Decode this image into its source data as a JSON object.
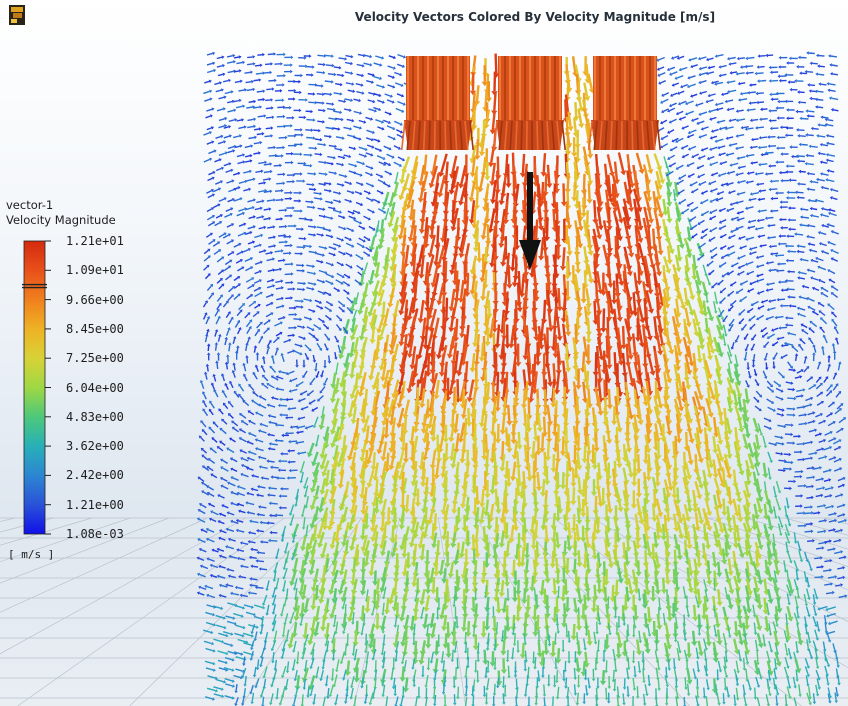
{
  "title": "Velocity Vectors Colored By Velocity Magnitude [m/s]",
  "app_icon": "fluent-logo-icon",
  "legend": {
    "name": "vector-1",
    "variable": "Velocity Magnitude",
    "units": "[ m/s ]",
    "ticks": [
      "1.21e+01",
      "1.09e+01",
      "9.66e+00",
      "8.45e+00",
      "7.25e+00",
      "6.04e+00",
      "4.83e+00",
      "3.62e+00",
      "2.42e+00",
      "1.21e+00",
      "1.08e-03"
    ],
    "colors": [
      "#d42a10",
      "#e8501a",
      "#f0801e",
      "#eeb224",
      "#d8d236",
      "#9ed844",
      "#4ec87a",
      "#28b0b8",
      "#2c86d2",
      "#2a52d8",
      "#1010e8"
    ],
    "marker_value": 10.3
  },
  "velocity_range": {
    "min": 0.00108,
    "max": 12.1
  },
  "scene": {
    "inlets": 3,
    "background_top": "#ffffff",
    "background_bottom": "#dfe7f0",
    "grid_color": "#b9c2cc"
  }
}
